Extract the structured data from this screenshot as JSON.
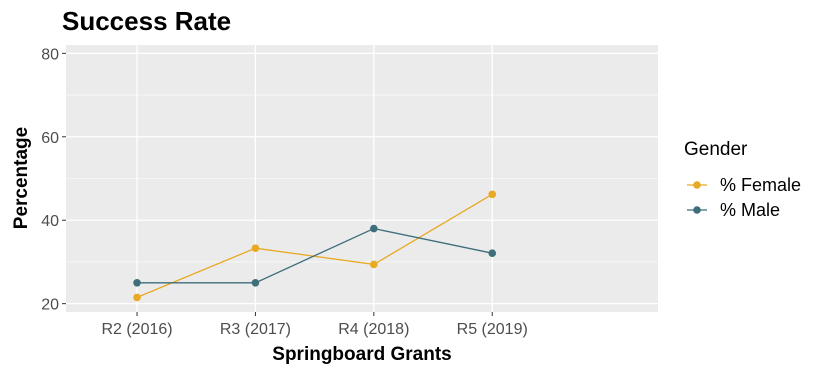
{
  "chart_data": {
    "type": "line",
    "title": "Success Rate",
    "xlabel": "Springboard Grants",
    "ylabel": "Percentage",
    "categories": [
      "R2 (2016)",
      "R3 (2017)",
      "R4 (2018)",
      "R5 (2019)"
    ],
    "ylim": [
      18,
      82
    ],
    "yticks": [
      20,
      40,
      60,
      80
    ],
    "grid": true,
    "legend": {
      "title": "Gender",
      "position": "right"
    },
    "series": [
      {
        "name": "% Female",
        "color": "#E8A924",
        "values": [
          21.5,
          33.3,
          29.4,
          46.2
        ]
      },
      {
        "name": "% Male",
        "color": "#3E6E7A",
        "values": [
          25.0,
          25.0,
          38.0,
          32.1
        ]
      }
    ]
  }
}
